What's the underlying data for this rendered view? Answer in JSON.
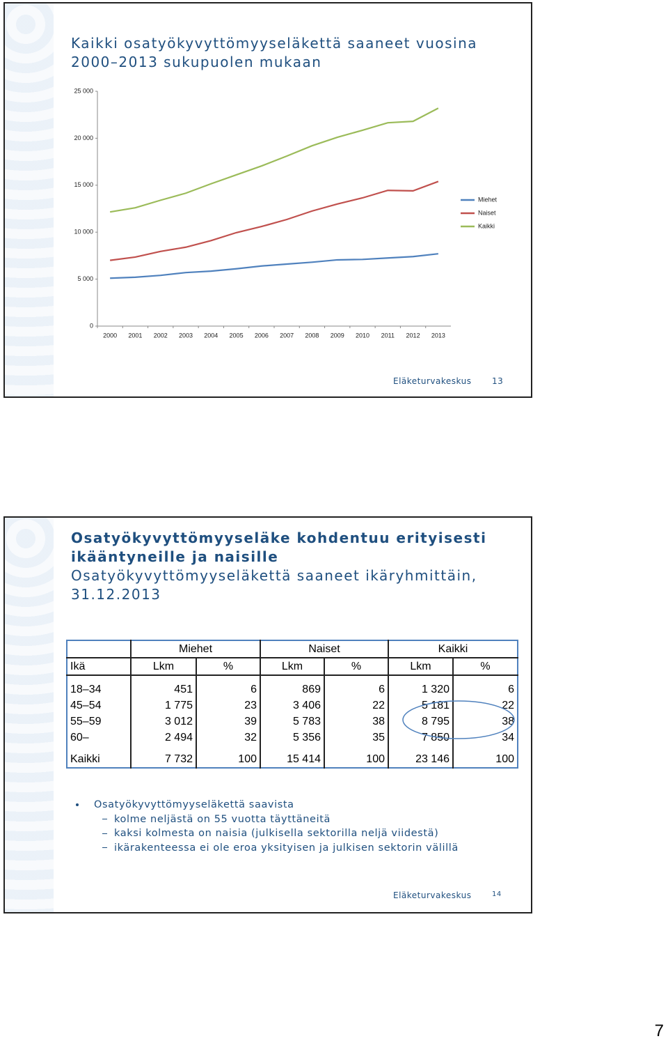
{
  "slide1": {
    "footer": "Eläketurvakeskus",
    "page": "13"
  },
  "chart_data": {
    "type": "line",
    "title": "Kaikki osatyökyvyttömyyseläkettä saaneet vuosina 2000–2013 sukupuolen mukaan",
    "categories": [
      "2000",
      "2001",
      "2002",
      "2003",
      "2004",
      "2005",
      "2006",
      "2007",
      "2008",
      "2009",
      "2010",
      "2011",
      "2012",
      "2013"
    ],
    "series": [
      {
        "name": "Miehet",
        "color": "#4f81bd",
        "values": [
          5100,
          5200,
          5400,
          5700,
          5850,
          6100,
          6400,
          6600,
          6800,
          7050,
          7100,
          7250,
          7400,
          7700
        ]
      },
      {
        "name": "Naiset",
        "color": "#c0504d",
        "values": [
          7000,
          7350,
          7950,
          8400,
          9100,
          9950,
          10600,
          11350,
          12250,
          13000,
          13650,
          14450,
          14400,
          15400
        ]
      },
      {
        "name": "Kaikki",
        "color": "#9bbb59",
        "values": [
          12150,
          12600,
          13400,
          14150,
          15150,
          16100,
          17050,
          18100,
          19200,
          20100,
          20850,
          21650,
          21800,
          23200
        ]
      }
    ],
    "ylim": [
      0,
      25000
    ],
    "yticks": [
      0,
      {
        "value": 5000,
        "label": "5 000"
      },
      {
        "value": 10000,
        "label": "10 000"
      },
      {
        "value": 15000,
        "label": "15 000"
      },
      {
        "value": 20000,
        "label": "20 000"
      },
      {
        "value": 25000,
        "label": "25 000"
      }
    ],
    "legend": "right"
  },
  "slide2": {
    "title_lines": [
      "Osatyökyvyttömyyseläke kohdentuu erityisesti",
      "ikääntyneille ja naisille"
    ],
    "subtitle_lines": [
      "Osatyökyvyttömyyseläkettä saaneet ikäryhmittäin,",
      "31.12.2013"
    ],
    "table": {
      "groups": [
        "Miehet",
        "Naiset",
        "Kaikki"
      ],
      "header": [
        "Ikä",
        "Lkm",
        "%",
        "Lkm",
        "%",
        "Lkm",
        "%"
      ],
      "rows": [
        [
          "18–34",
          "451",
          "6",
          "869",
          "6",
          "1 320",
          "6"
        ],
        [
          "45–54",
          "1 775",
          "23",
          "3 406",
          "22",
          "5 181",
          "22"
        ],
        [
          "55–59",
          "3 012",
          "39",
          "5 783",
          "38",
          "8 795",
          "38"
        ],
        [
          "60–",
          "2 494",
          "32",
          "5 356",
          "35",
          "7 850",
          "34"
        ],
        [
          "Kaikki",
          "7 732",
          "100",
          "15 414",
          "100",
          "23 146",
          "100"
        ]
      ]
    },
    "bullet": "Osatyökyvyttömyyseläkettä saavista",
    "items": [
      "kolme neljästä on 55 vuotta täyttäneitä",
      "kaksi kolmesta on naisia (julkisella sektorilla neljä viidestä)",
      "ikärakenteessa ei ole eroa yksityisen ja julkisen sektorin välillä"
    ],
    "footer": "Eläketurvakeskus",
    "page": "14"
  },
  "page_number": "7"
}
